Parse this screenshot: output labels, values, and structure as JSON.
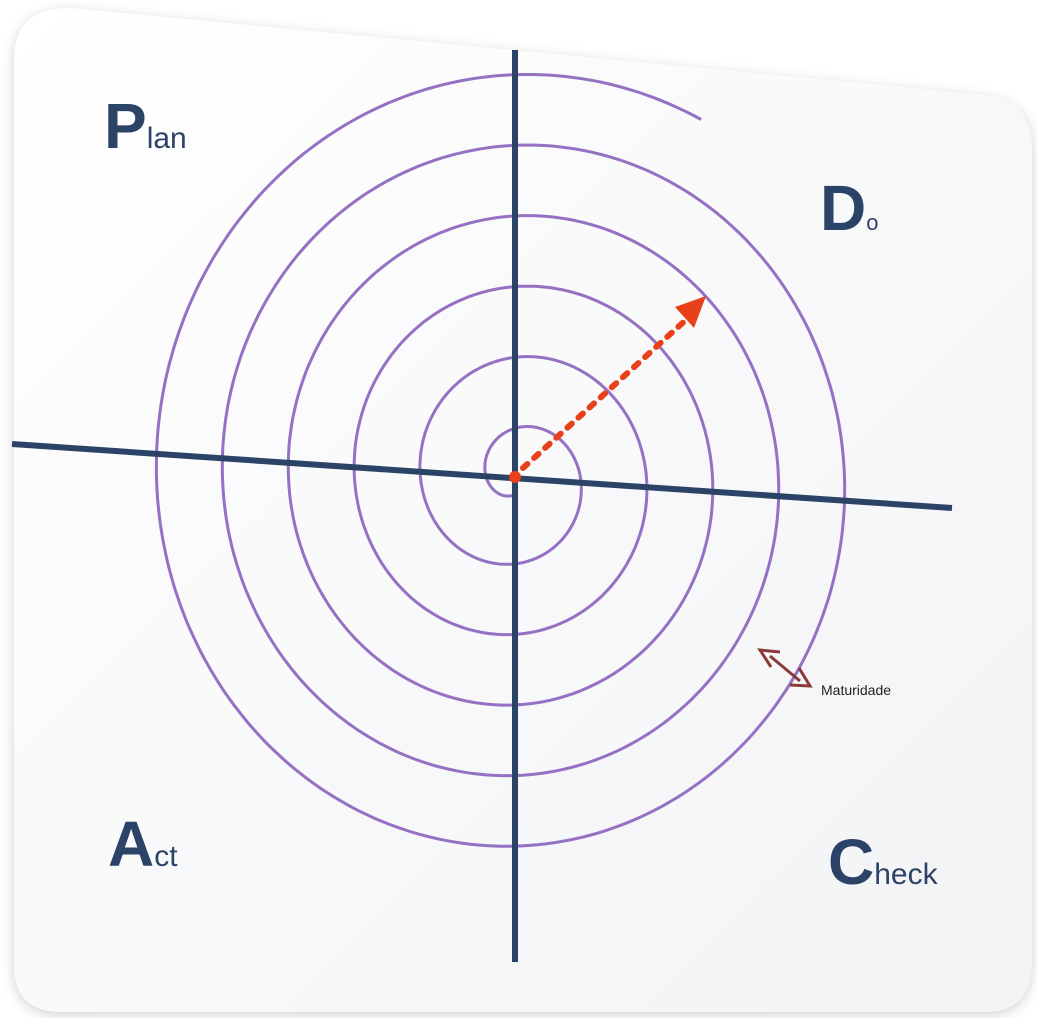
{
  "labels": {
    "plan": {
      "initial": "P",
      "rest": "lan"
    },
    "do": {
      "initial": "D",
      "rest": "o"
    },
    "act": {
      "initial": "A",
      "rest": "ct"
    },
    "check": {
      "initial": "C",
      "rest": "heck"
    },
    "maturity": "Maturidade"
  },
  "colors": {
    "axis": "#2c4368",
    "spiral": "#9571c4",
    "progress_arrow": "#e8411a",
    "maturity_arrow": "#8b3a3a",
    "label_text": "#2c4368"
  }
}
